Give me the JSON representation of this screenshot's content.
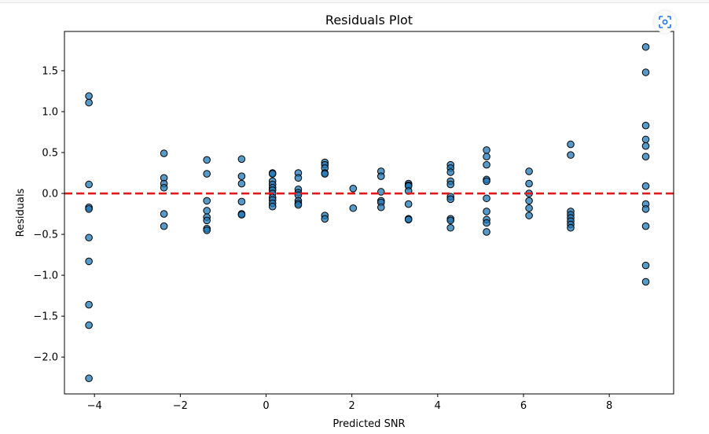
{
  "chart_data": {
    "type": "scatter",
    "title": "Residuals Plot",
    "xlabel": "Predicted SNR",
    "ylabel": "Residuals",
    "xlim": [
      -4.7,
      9.5
    ],
    "ylim": [
      -2.45,
      1.98
    ],
    "xticks": [
      -4,
      -2,
      0,
      2,
      4,
      6,
      8
    ],
    "xtick_labels": [
      "−4",
      "−2",
      "0",
      "2",
      "4",
      "6",
      "8"
    ],
    "yticks": [
      -2.0,
      -1.5,
      -1.0,
      -0.5,
      0.0,
      0.5,
      1.0,
      1.5
    ],
    "ytick_labels": [
      "−2.0",
      "−1.5",
      "−1.0",
      "−0.5",
      "0.0",
      "0.5",
      "1.0",
      "1.5"
    ],
    "grid": false,
    "point_color": "#1f77b4",
    "point_edge_color": "#000000",
    "reference_line": {
      "y": 0.0,
      "color": "#e31a1c",
      "style": "dashed"
    },
    "points": [
      {
        "x": -4.13,
        "y": 1.19
      },
      {
        "x": -4.13,
        "y": 1.11
      },
      {
        "x": -4.13,
        "y": 0.11
      },
      {
        "x": -4.13,
        "y": -0.17
      },
      {
        "x": -4.13,
        "y": -0.19
      },
      {
        "x": -4.13,
        "y": -0.54
      },
      {
        "x": -4.13,
        "y": -0.83
      },
      {
        "x": -4.13,
        "y": -1.36
      },
      {
        "x": -4.13,
        "y": -1.61
      },
      {
        "x": -4.13,
        "y": -2.26
      },
      {
        "x": -2.38,
        "y": 0.49
      },
      {
        "x": -2.38,
        "y": 0.19
      },
      {
        "x": -2.38,
        "y": 0.12
      },
      {
        "x": -2.38,
        "y": 0.07
      },
      {
        "x": -2.38,
        "y": -0.25
      },
      {
        "x": -2.38,
        "y": -0.4
      },
      {
        "x": -1.38,
        "y": 0.41
      },
      {
        "x": -1.38,
        "y": 0.24
      },
      {
        "x": -1.38,
        "y": -0.09
      },
      {
        "x": -1.38,
        "y": -0.21
      },
      {
        "x": -1.38,
        "y": -0.29
      },
      {
        "x": -1.38,
        "y": -0.33
      },
      {
        "x": -1.38,
        "y": -0.43
      },
      {
        "x": -1.38,
        "y": -0.45
      },
      {
        "x": -0.57,
        "y": 0.42
      },
      {
        "x": -0.57,
        "y": 0.21
      },
      {
        "x": -0.57,
        "y": 0.12
      },
      {
        "x": -0.57,
        "y": -0.1
      },
      {
        "x": -0.57,
        "y": -0.25
      },
      {
        "x": -0.57,
        "y": -0.26
      },
      {
        "x": 0.15,
        "y": 0.25
      },
      {
        "x": 0.15,
        "y": 0.24
      },
      {
        "x": 0.15,
        "y": 0.15
      },
      {
        "x": 0.15,
        "y": 0.11
      },
      {
        "x": 0.15,
        "y": 0.07
      },
      {
        "x": 0.15,
        "y": 0.04
      },
      {
        "x": 0.15,
        "y": 0.0
      },
      {
        "x": 0.15,
        "y": -0.05
      },
      {
        "x": 0.15,
        "y": -0.08
      },
      {
        "x": 0.15,
        "y": -0.12
      },
      {
        "x": 0.15,
        "y": -0.16
      },
      {
        "x": 0.75,
        "y": 0.25
      },
      {
        "x": 0.75,
        "y": 0.19
      },
      {
        "x": 0.75,
        "y": 0.05
      },
      {
        "x": 0.75,
        "y": 0.01
      },
      {
        "x": 0.75,
        "y": -0.02
      },
      {
        "x": 0.75,
        "y": -0.09
      },
      {
        "x": 0.75,
        "y": -0.12
      },
      {
        "x": 0.75,
        "y": -0.14
      },
      {
        "x": 1.37,
        "y": 0.38
      },
      {
        "x": 1.37,
        "y": 0.35
      },
      {
        "x": 1.37,
        "y": 0.31
      },
      {
        "x": 1.37,
        "y": 0.25
      },
      {
        "x": 1.37,
        "y": 0.24
      },
      {
        "x": 1.37,
        "y": -0.27
      },
      {
        "x": 1.37,
        "y": -0.31
      },
      {
        "x": 2.03,
        "y": 0.06
      },
      {
        "x": 2.03,
        "y": -0.18
      },
      {
        "x": 2.68,
        "y": 0.27
      },
      {
        "x": 2.68,
        "y": 0.21
      },
      {
        "x": 2.68,
        "y": 0.02
      },
      {
        "x": 2.68,
        "y": -0.09
      },
      {
        "x": 2.68,
        "y": -0.11
      },
      {
        "x": 2.68,
        "y": -0.17
      },
      {
        "x": 3.32,
        "y": 0.12
      },
      {
        "x": 3.32,
        "y": 0.1
      },
      {
        "x": 3.32,
        "y": 0.09
      },
      {
        "x": 3.32,
        "y": 0.03
      },
      {
        "x": 3.32,
        "y": -0.13
      },
      {
        "x": 3.32,
        "y": -0.31
      },
      {
        "x": 3.32,
        "y": -0.32
      },
      {
        "x": 4.3,
        "y": 0.35
      },
      {
        "x": 4.3,
        "y": 0.31
      },
      {
        "x": 4.3,
        "y": 0.26
      },
      {
        "x": 4.3,
        "y": 0.15
      },
      {
        "x": 4.3,
        "y": 0.11
      },
      {
        "x": 4.3,
        "y": -0.04
      },
      {
        "x": 4.3,
        "y": -0.07
      },
      {
        "x": 4.3,
        "y": -0.31
      },
      {
        "x": 4.3,
        "y": -0.33
      },
      {
        "x": 4.3,
        "y": -0.42
      },
      {
        "x": 5.14,
        "y": 0.53
      },
      {
        "x": 5.14,
        "y": 0.45
      },
      {
        "x": 5.14,
        "y": 0.35
      },
      {
        "x": 5.14,
        "y": 0.17
      },
      {
        "x": 5.14,
        "y": 0.15
      },
      {
        "x": 5.14,
        "y": -0.06
      },
      {
        "x": 5.14,
        "y": -0.22
      },
      {
        "x": 5.14,
        "y": -0.32
      },
      {
        "x": 5.14,
        "y": -0.36
      },
      {
        "x": 5.14,
        "y": -0.47
      },
      {
        "x": 6.13,
        "y": 0.27
      },
      {
        "x": 6.13,
        "y": 0.12
      },
      {
        "x": 6.13,
        "y": 0.0
      },
      {
        "x": 6.13,
        "y": -0.09
      },
      {
        "x": 6.13,
        "y": -0.18
      },
      {
        "x": 6.13,
        "y": -0.27
      },
      {
        "x": 7.1,
        "y": 0.6
      },
      {
        "x": 7.1,
        "y": 0.47
      },
      {
        "x": 7.1,
        "y": -0.22
      },
      {
        "x": 7.1,
        "y": -0.26
      },
      {
        "x": 7.1,
        "y": -0.3
      },
      {
        "x": 7.1,
        "y": -0.34
      },
      {
        "x": 7.1,
        "y": -0.38
      },
      {
        "x": 7.1,
        "y": -0.42
      },
      {
        "x": 8.85,
        "y": 1.79
      },
      {
        "x": 8.85,
        "y": 1.48
      },
      {
        "x": 8.85,
        "y": 0.83
      },
      {
        "x": 8.85,
        "y": 0.66
      },
      {
        "x": 8.85,
        "y": 0.58
      },
      {
        "x": 8.85,
        "y": 0.45
      },
      {
        "x": 8.85,
        "y": 0.09
      },
      {
        "x": 8.85,
        "y": -0.13
      },
      {
        "x": 8.85,
        "y": -0.19
      },
      {
        "x": 8.85,
        "y": -0.4
      },
      {
        "x": 8.85,
        "y": -0.88
      },
      {
        "x": 8.85,
        "y": -1.08
      }
    ]
  },
  "toolbar": {
    "screenshot_icon": "scan-camera-icon"
  }
}
